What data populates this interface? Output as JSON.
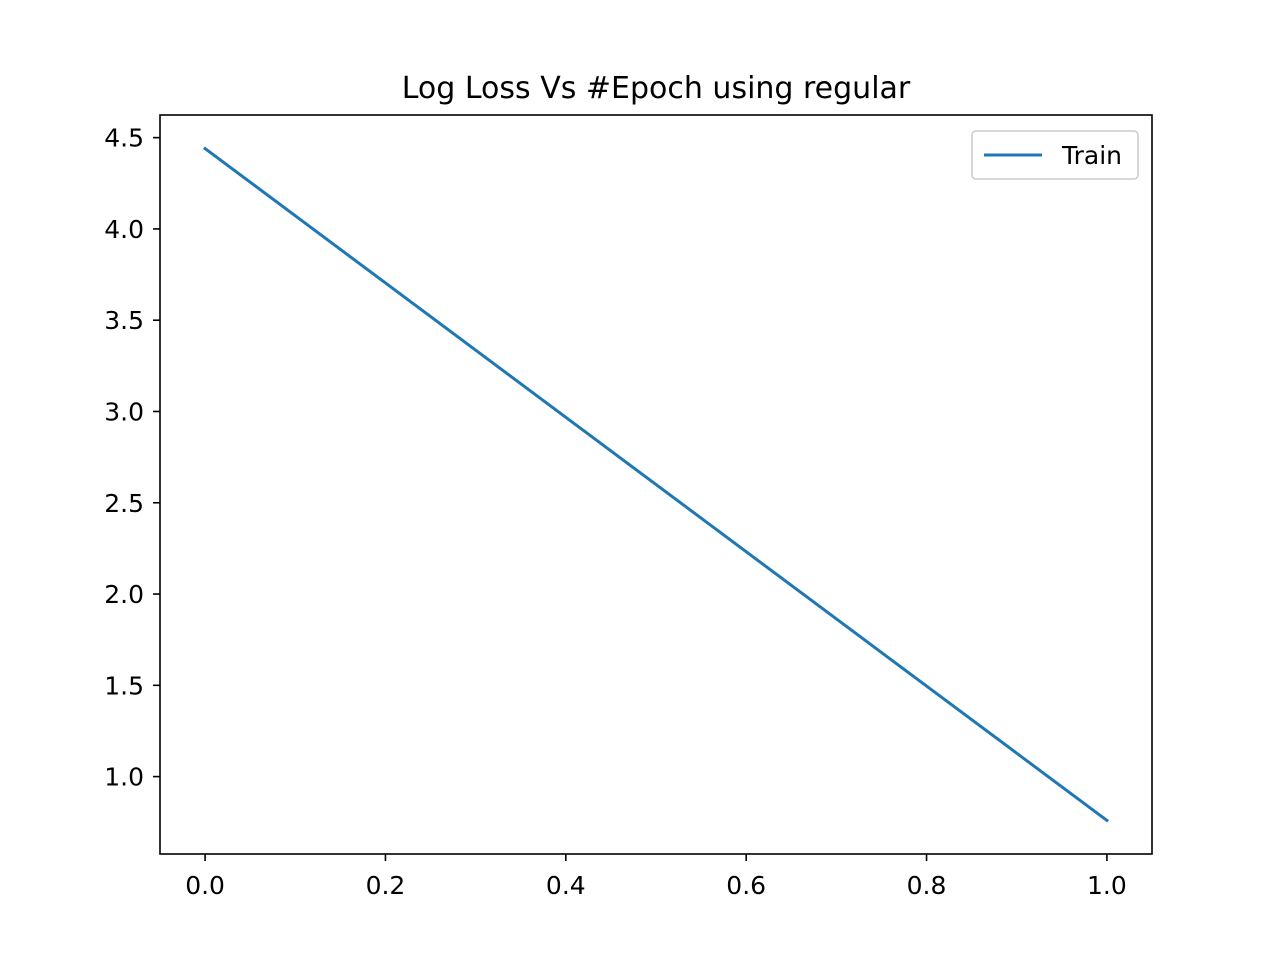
{
  "chart_data": {
    "type": "line",
    "title": "Log Loss Vs #Epoch using regular",
    "xlabel": "",
    "ylabel": "",
    "x": [
      0.0,
      1.0
    ],
    "series": [
      {
        "name": "Train",
        "values": [
          4.44,
          0.76
        ],
        "color": "#1f77b4"
      }
    ],
    "xlim": [
      -0.05,
      1.05
    ],
    "ylim": [
      0.576,
      4.624
    ],
    "x_ticks": [
      "0.0",
      "0.2",
      "0.4",
      "0.6",
      "0.8",
      "1.0"
    ],
    "y_ticks": [
      "1.0",
      "1.5",
      "2.0",
      "2.5",
      "3.0",
      "3.5",
      "4.0",
      "4.5"
    ],
    "grid": false,
    "legend_position": "upper right"
  }
}
